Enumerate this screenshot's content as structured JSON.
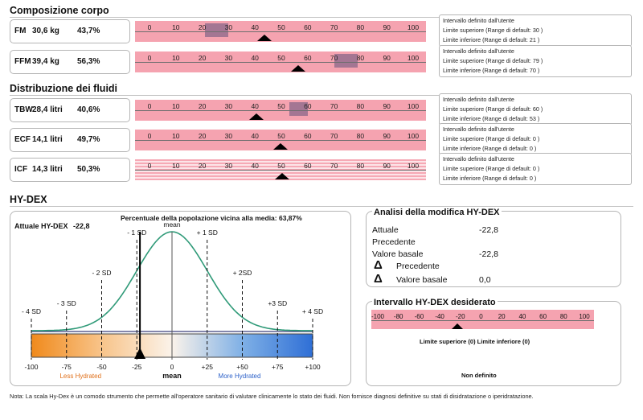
{
  "composizione": {
    "title": "Composizione corpo",
    "rows": [
      {
        "label": "FM",
        "value": "30,6 kg",
        "percent": "43,7%",
        "marker": 43.7,
        "range": [
          21,
          30
        ],
        "info": [
          "Intervallo definito dall'utente",
          "Limite superiore (Range di default: 30 )",
          "Limite inferiore (Range di default: 21 )"
        ]
      },
      {
        "label": "FFM",
        "value": "39,4 kg",
        "percent": "56,3%",
        "marker": 56.3,
        "range": [
          70,
          79
        ],
        "info": [
          "Intervallo definito dall'utente",
          "Limite superiore (Range di default: 79 )",
          "Limite inferiore (Range di default: 70 )"
        ]
      }
    ]
  },
  "fluidi": {
    "title": "Distribuzione dei fluidi",
    "rows": [
      {
        "label": "TBW",
        "value": "28,4 litri",
        "percent": "40,6%",
        "marker": 40.6,
        "range": [
          53,
          60
        ],
        "info": [
          "Intervallo definito dall'utente",
          "Limite superiore (Range di default: 60 )",
          "Limite inferiore (Range di default: 53 )"
        ]
      },
      {
        "label": "ECF",
        "value": "14,1 litri",
        "percent": "49,7%",
        "marker": 49.7,
        "info": [
          "Intervallo definito dall'utente",
          "Limite superiore (Range di default: 0 )",
          "Limite inferiore (Range di default: 0 )"
        ]
      },
      {
        "label": "ICF",
        "value": "14,3 litri",
        "percent": "50,3%",
        "marker": 50.3,
        "striped": true,
        "info": [
          "Intervallo definito dall'utente",
          "Limite superiore (Range di default: 0 )",
          "Limite inferiore (Range di default: 0 )"
        ]
      }
    ]
  },
  "scale_ticks": [
    "0",
    "10",
    "20",
    "30",
    "40",
    "50",
    "60",
    "70",
    "80",
    "90",
    "100"
  ],
  "hydex": {
    "title": "HY-DEX",
    "attuale_label": "Attuale HY-DEX",
    "attuale_value": "-22,8",
    "marker": -22.8,
    "percentuale": "Percentuale della popolazione vicina alla media: 63,87%",
    "sd_labels": [
      {
        "text": "- 4 SD",
        "v": -100
      },
      {
        "text": "- 3 SD",
        "v": -75
      },
      {
        "text": "- 2 SD",
        "v": -50
      },
      {
        "text": "- 1 SD",
        "v": -25
      },
      {
        "text": "mean",
        "v": 0
      },
      {
        "text": "+ 1 SD",
        "v": 25
      },
      {
        "text": "+ 2SD",
        "v": 50
      },
      {
        "text": "+3 SD",
        "v": 75
      },
      {
        "text": "+ 4 SD",
        "v": 100
      }
    ],
    "axis_ticks": [
      "-100",
      "-75",
      "-50",
      "-25",
      "0",
      "+25",
      "+50",
      "+75",
      "+100"
    ],
    "axis_mean": "mean",
    "less": "Less Hydrated",
    "more": "More Hydrated"
  },
  "analisi": {
    "title": "Analisi della modifica HY-DEX",
    "attuale_label": "Attuale",
    "attuale_value": "-22,8",
    "precedente_label": "Precedente",
    "valore_basale_label": "Valore basale",
    "valore_basale_value": "-22,8",
    "delta_symbol": "Δ",
    "delta_precedente_label": "Precedente",
    "delta_basale_label": "Valore basale",
    "delta_basale_value": "0,0"
  },
  "desiderato": {
    "title": "Intervallo HY-DEX desiderato",
    "ticks": [
      "-100",
      "-80",
      "-60",
      "-40",
      "-20",
      "0",
      "20",
      "40",
      "60",
      "80",
      "100"
    ],
    "marker": -22.8,
    "limits": "Limite superiore (0) Limite inferiore (0)",
    "non_definito": "Non definito"
  },
  "nota": "Nota: La scala Hy-Dex è un comodo strumento che permette all'operatore sanitario di valutare clinicamente lo stato dei fluidi. Non fornisce diagnosi definitive su stati di disidratazione o iperidratazione."
}
